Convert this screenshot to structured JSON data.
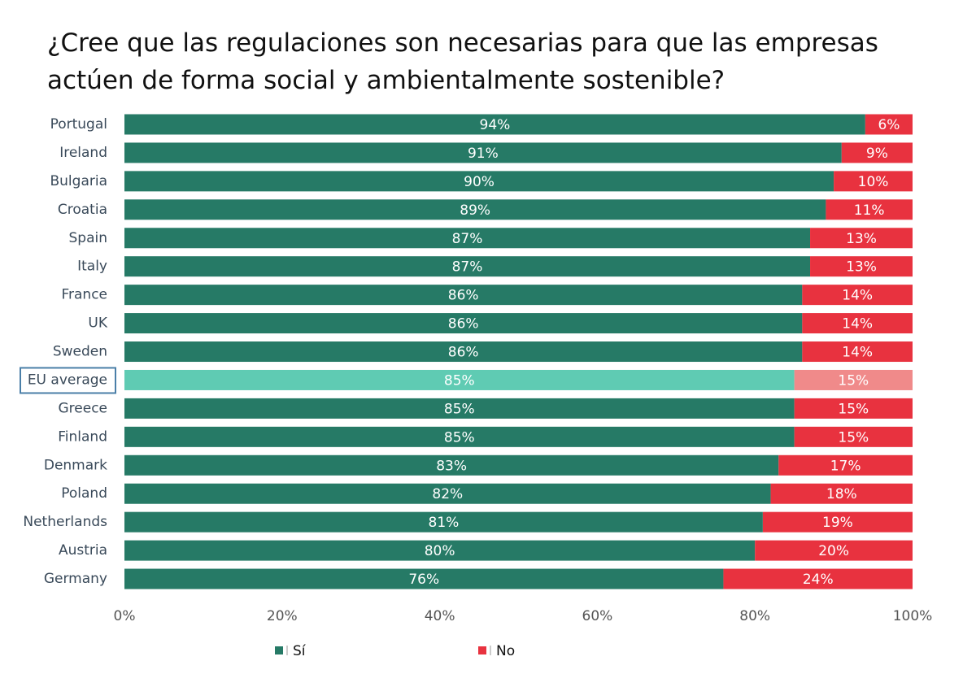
{
  "chart_data": {
    "type": "stacked-bar-horizontal",
    "title": "¿Cree que las regulaciones son necesarias para que las empresas actúen de forma social y ambientalmente sostenible?",
    "categories": [
      "Portugal",
      "Ireland",
      "Bulgaria",
      "Croatia",
      "Spain",
      "Italy",
      "France",
      "UK",
      "Sweden",
      "EU average",
      "Greece",
      "Finland",
      "Denmark",
      "Poland",
      "Netherlands",
      "Austria",
      "Germany"
    ],
    "highlight_category": 9,
    "series": [
      {
        "name": "Sí",
        "color": "#267a66",
        "highlight_color": "#5fcbb3",
        "values": [
          94,
          91,
          90,
          89,
          87,
          87,
          86,
          86,
          86,
          85,
          85,
          85,
          83,
          82,
          81,
          80,
          76
        ],
        "value_labels": [
          "94%",
          "91%",
          "90%",
          "89%",
          "87%",
          "87%",
          "86%",
          "86%",
          "86%",
          "85%",
          "85%",
          "85%",
          "83%",
          "82%",
          "81%",
          "80%",
          "76%"
        ]
      },
      {
        "name": "No",
        "color": "#e8323f",
        "highlight_color": "#f08a8a",
        "values": [
          6,
          9,
          10,
          11,
          13,
          13,
          14,
          14,
          14,
          15,
          15,
          15,
          17,
          18,
          19,
          20,
          24
        ],
        "value_labels": [
          "6%",
          "9%",
          "10%",
          "11%",
          "13%",
          "13%",
          "14%",
          "14%",
          "14%",
          "15%",
          "15%",
          "15%",
          "17%",
          "18%",
          "19%",
          "20%",
          "24%"
        ]
      }
    ],
    "xlim": [
      0,
      100
    ],
    "xticks": [
      {
        "value": 0,
        "label": "0%"
      },
      {
        "value": 20,
        "label": "20%"
      },
      {
        "value": 40,
        "label": "40%"
      },
      {
        "value": 60,
        "label": "60%"
      },
      {
        "value": 80,
        "label": "80%"
      },
      {
        "value": 100,
        "label": "100%"
      }
    ],
    "grid": false
  }
}
